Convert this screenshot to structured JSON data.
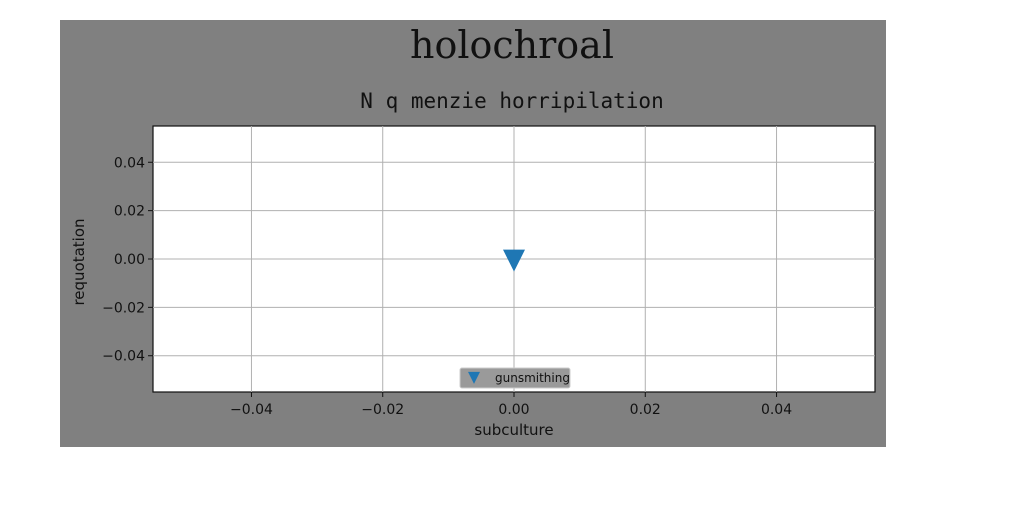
{
  "chart_data": {
    "type": "scatter",
    "suptitle": "holochroal",
    "title": "N q menzie horripilation",
    "xlabel": "subculture",
    "ylabel": "requotation",
    "xlim": [
      -0.055,
      0.055
    ],
    "ylim": [
      -0.055,
      0.055
    ],
    "xticks": [
      -0.04,
      -0.02,
      0.0,
      0.02,
      0.04
    ],
    "xtick_labels": [
      "−0.04",
      "−0.02",
      "0.00",
      "0.02",
      "0.04"
    ],
    "yticks": [
      -0.04,
      -0.02,
      0.0,
      0.02,
      0.04
    ],
    "ytick_labels": [
      "−0.04",
      "−0.02",
      "0.00",
      "0.02",
      "0.04"
    ],
    "grid": true,
    "legend_position": "lower center",
    "series": [
      {
        "name": "gunsmithing",
        "marker": "triangle-down",
        "color": "#1f77b4",
        "points": [
          {
            "x": 0.0,
            "y": 0.0
          }
        ]
      }
    ]
  }
}
